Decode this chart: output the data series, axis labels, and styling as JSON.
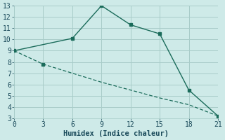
{
  "line1_x": [
    0,
    6,
    9,
    12,
    15,
    18,
    21
  ],
  "line1_y": [
    9,
    10.1,
    13,
    11.3,
    10.5,
    5.5,
    3.2
  ],
  "line2_x": [
    0,
    3,
    6,
    9,
    12,
    15,
    18,
    21
  ],
  "line2_y": [
    9,
    7.8,
    7.0,
    6.2,
    5.5,
    4.8,
    4.2,
    3.2
  ],
  "line_color": "#1a6b5a",
  "bg_color": "#ceeae8",
  "grid_color": "#a8ccc9",
  "xlabel": "Humidex (Indice chaleur)",
  "xlim": [
    0,
    21
  ],
  "ylim": [
    3,
    13
  ],
  "xticks": [
    0,
    3,
    6,
    9,
    12,
    15,
    18,
    21
  ],
  "yticks": [
    3,
    4,
    5,
    6,
    7,
    8,
    9,
    10,
    11,
    12,
    13
  ],
  "font_color": "#1a4a5a",
  "font_family": "monospace",
  "tick_fontsize": 7,
  "label_fontsize": 7.5
}
